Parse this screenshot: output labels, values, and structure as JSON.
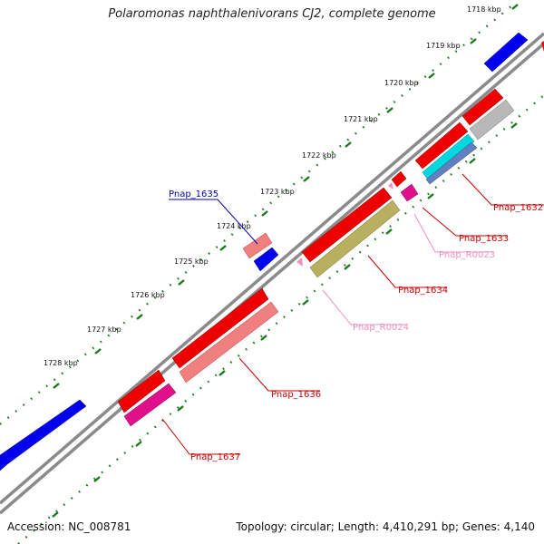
{
  "title": "Polaromonas naphthalenivorans CJ2, complete genome",
  "accession": "Accession: NC_008781",
  "summary": "Topology: circular; Length: 4,410,291 bp; Genes: 4,140",
  "ticks": [
    "1718 kbp",
    "1719 kbp",
    "1720 kbp",
    "1721 kbp",
    "1722 kbp",
    "1723 kbp",
    "1724 kbp",
    "1725 kbp",
    "1726 kbp",
    "1727 kbp",
    "1728 kbp"
  ],
  "genes": [
    {
      "id": "Pnap_1632",
      "color": "#cc0000"
    },
    {
      "id": "Pnap_1633",
      "color": "#cc0000"
    },
    {
      "id": "Pnap_R0023",
      "color": "#f090c0"
    },
    {
      "id": "Pnap_1634",
      "color": "#cc0000"
    },
    {
      "id": "Pnap_R0024",
      "color": "#f090c0"
    },
    {
      "id": "Pnap_1635",
      "color": "#0000aa"
    },
    {
      "id": "Pnap_1636",
      "color": "#cc0000"
    },
    {
      "id": "Pnap_1637",
      "color": "#cc0000"
    }
  ],
  "colors": {
    "backbone": "#8a8a8a",
    "forward_cds": "#0000ee",
    "reverse_cds": "#ee0000",
    "cog_pink": "#f08080",
    "cog_magenta": "#e0108a",
    "cog_olive": "#b8b060",
    "cog_cyan": "#00d8e0",
    "cog_steel": "#6080c0",
    "cog_gray": "#b8b8b8",
    "tick_green": "#1a7a1a"
  }
}
